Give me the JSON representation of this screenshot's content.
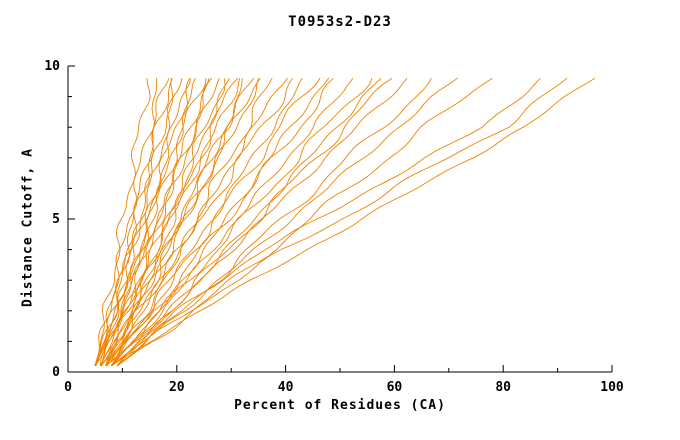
{
  "title": "T0953s2-D23",
  "chart_data": {
    "type": "line",
    "title": "T0953s2-D23",
    "xlabel": "Percent of Residues (CA)",
    "ylabel": "Distance Cutoff, A",
    "xlim": [
      0,
      100
    ],
    "ylim": [
      0,
      10
    ],
    "x_ticks": [
      0,
      20,
      40,
      60,
      80,
      100
    ],
    "y_ticks": [
      0,
      5,
      10
    ],
    "x_minor_step": 10,
    "y_minor_step": 1,
    "grid": false,
    "legend": "none",
    "line_color": "#f08300",
    "axis_color": "#000000",
    "y_anchors": [
      0.2,
      2,
      4,
      6,
      8,
      9.7
    ],
    "series": [
      {
        "x": [
          5,
          7.1,
          9.1,
          11.2,
          13.2,
          15
        ]
      },
      {
        "x": [
          5,
          7.5,
          10,
          12.4,
          14.9,
          17
        ]
      },
      {
        "x": [
          6,
          8.5,
          11,
          13.4,
          15.9,
          18
        ]
      },
      {
        "x": [
          5,
          7.9,
          10.8,
          13.7,
          16.6,
          19
        ]
      },
      {
        "x": [
          6,
          8.9,
          11.8,
          14.7,
          17.6,
          20
        ]
      },
      {
        "x": [
          5,
          8.3,
          11.6,
          14.9,
          18.2,
          21
        ]
      },
      {
        "x": [
          7,
          10.1,
          13.2,
          16.3,
          19.4,
          22
        ]
      },
      {
        "x": [
          5,
          8.7,
          12.4,
          16.1,
          19.8,
          23
        ]
      },
      {
        "x": [
          6,
          9.7,
          13.4,
          17.1,
          20.8,
          24
        ]
      },
      {
        "x": [
          5,
          9.1,
          13.2,
          17.3,
          21.4,
          25
        ]
      },
      {
        "x": [
          7,
          10.9,
          14.8,
          18.7,
          22.6,
          26
        ]
      },
      {
        "x": [
          6,
          10.3,
          14.6,
          18.9,
          23.2,
          27
        ]
      },
      {
        "x": [
          5,
          9.7,
          14.4,
          19.1,
          23.8,
          28
        ]
      },
      {
        "x": [
          8,
          12.3,
          16.6,
          20.9,
          25.2,
          29
        ]
      },
      {
        "x": [
          6,
          10.9,
          15.8,
          20.7,
          25.6,
          30
        ]
      },
      {
        "x": [
          7,
          11.9,
          16.8,
          21.7,
          26.6,
          31
        ]
      },
      {
        "x": [
          5,
          10.6,
          16.2,
          21.8,
          27.4,
          32
        ]
      },
      {
        "x": [
          8,
          13.2,
          18.4,
          23.6,
          28.8,
          33
        ]
      },
      {
        "x": [
          6,
          11.8,
          17.6,
          23.4,
          29.2,
          34
        ]
      },
      {
        "x": [
          7,
          12.8,
          18.6,
          24.4,
          30.2,
          35
        ]
      },
      {
        "x": [
          6,
          12.2,
          18.4,
          24.6,
          30.8,
          36
        ]
      },
      {
        "x": [
          8,
          14.2,
          20.4,
          26.6,
          32.8,
          38
        ]
      },
      {
        "x": [
          7,
          13.8,
          20.6,
          27.4,
          34.2,
          40
        ]
      },
      {
        "x": [
          6,
          13.4,
          20.8,
          28.2,
          35.6,
          42
        ]
      },
      {
        "x": [
          8,
          15.4,
          22.8,
          30.2,
          37.6,
          44
        ]
      },
      {
        "x": [
          7,
          15,
          23.1,
          31.1,
          39,
          46
        ]
      },
      {
        "x": [
          9,
          17,
          25.1,
          33.1,
          41,
          48
        ]
      },
      {
        "x": [
          7,
          15.9,
          24.7,
          33.6,
          42.4,
          50
        ]
      },
      {
        "x": [
          8,
          17.3,
          26.5,
          35.8,
          45,
          53
        ]
      },
      {
        "x": [
          7,
          17.1,
          27.2,
          37.3,
          47.3,
          56
        ]
      },
      {
        "x": [
          9,
          19.1,
          29.2,
          39.3,
          49.3,
          58
        ]
      },
      {
        "x": [
          8,
          18.7,
          29.4,
          40.2,
          50.9,
          60
        ]
      },
      {
        "x": [
          7,
          18.5,
          30.1,
          41.6,
          53.1,
          63
        ]
      },
      {
        "x": [
          9,
          21.2,
          33.3,
          45.5,
          57.6,
          68
        ]
      },
      {
        "x": [
          8,
          21.2,
          34.4,
          47.6,
          60.8,
          72
        ]
      },
      {
        "x": [
          9,
          23.2,
          37.4,
          51.6,
          65.8,
          78
        ]
      },
      {
        "x": [
          8,
          20,
          36,
          56,
          76,
          88
        ]
      },
      {
        "x": [
          9,
          22,
          40,
          60,
          80,
          93
        ]
      },
      {
        "x": [
          8,
          24,
          44,
          64,
          84,
          97
        ]
      }
    ]
  }
}
